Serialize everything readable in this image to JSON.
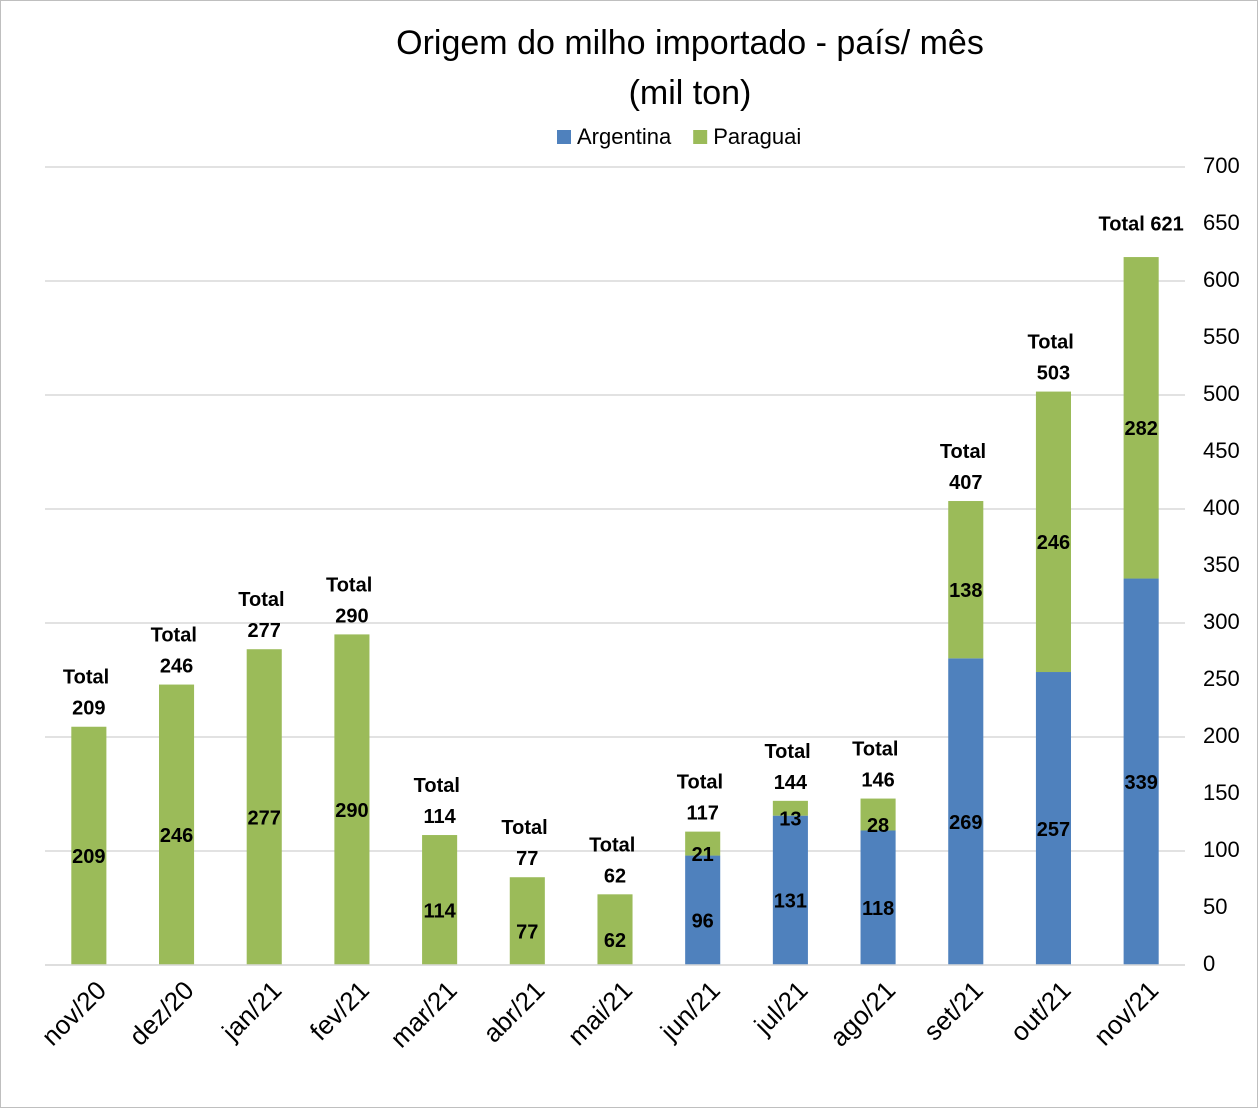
{
  "chart_data": {
    "type": "stacked_bar",
    "title": "Origem do milho importado - país/ mês",
    "subtitle": "(mil ton)",
    "categories": [
      "nov/20",
      "dez/20",
      "jan/21",
      "fev/21",
      "mar/21",
      "abr/21",
      "mai/21",
      "jun/21",
      "jul/21",
      "ago/21",
      "set/21",
      "out/21",
      "nov/21"
    ],
    "series": [
      {
        "name": "Argentina",
        "color": "#4f81bd",
        "values": [
          null,
          null,
          null,
          null,
          null,
          null,
          null,
          96,
          131,
          118,
          269,
          257,
          339
        ]
      },
      {
        "name": "Paraguai",
        "color": "#9bbb59",
        "values": [
          209,
          246,
          277,
          290,
          114,
          77,
          62,
          21,
          13,
          28,
          138,
          246,
          282
        ]
      }
    ],
    "totals": {
      "values": [
        209,
        246,
        277,
        290,
        114,
        77,
        62,
        117,
        144,
        146,
        407,
        503,
        621
      ],
      "value_labels": [
        "Total 209",
        "Total 246",
        "Total 277",
        "Total 290",
        "Total 114",
        "Total 77",
        "Total 62",
        "Total 117",
        "Total 144",
        "Total 146",
        "Total 407",
        "Total 503",
        "Total  621"
      ]
    },
    "ylim": [
      0,
      700
    ],
    "yticks": [
      0,
      50,
      100,
      150,
      200,
      250,
      300,
      350,
      400,
      450,
      500,
      550,
      600,
      650,
      700
    ],
    "grid": true,
    "grid_every": 100,
    "legend": "top"
  }
}
